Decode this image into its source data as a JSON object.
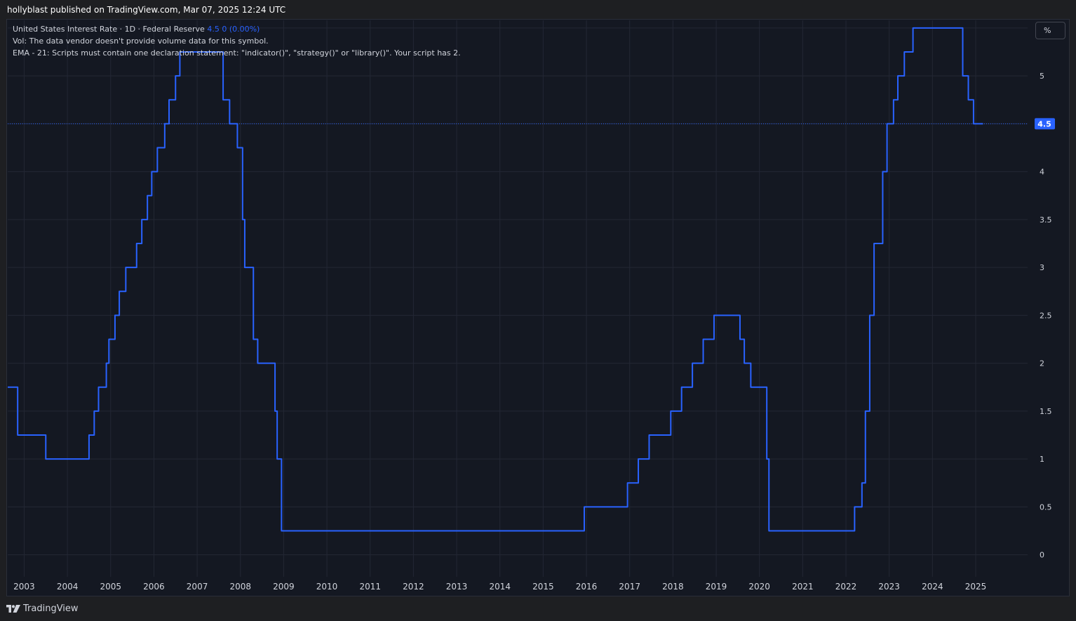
{
  "header": {
    "publisher_line": "hollyblast published on TradingView.com, Mar 07, 2025 12:24 UTC"
  },
  "legend": {
    "line1_prefix": "United States Interest Rate · 1D · Federal Reserve",
    "line1_values": "4.5  0 (0.00%)",
    "line2": "Vol: The data vendor doesn't provide volume data for this symbol.",
    "line3": "EMA - 21: Scripts must contain one declaration statement: \"indicator()\", \"strategy()\" or \"library()\". Your script has 2."
  },
  "scale_button": {
    "label": "%"
  },
  "footer": {
    "brand": "TradingView",
    "logo_icon": "tradingview-logo-icon"
  },
  "colors": {
    "line": "#2962ff",
    "background": "#141822",
    "grid": "#232734",
    "text": "#d1d4dc"
  },
  "chart_data": {
    "type": "line",
    "title": "United States Interest Rate",
    "xlabel": "",
    "ylabel": "",
    "ylim": [
      -0.23,
      5.58
    ],
    "xlim": [
      2002.62,
      2026.2
    ],
    "y_ticks": [
      "0",
      "0.5",
      "1",
      "1.5",
      "2",
      "2.5",
      "3",
      "3.5",
      "4",
      "4.5",
      "5",
      "5.5"
    ],
    "x_ticks": [
      "2003",
      "2004",
      "2005",
      "2006",
      "2007",
      "2008",
      "2009",
      "2010",
      "2011",
      "2012",
      "2013",
      "2014",
      "2015",
      "2016",
      "2017",
      "2018",
      "2019",
      "2020",
      "2021",
      "2022",
      "2023",
      "2024",
      "2025"
    ],
    "last_value_label": "4.5",
    "last_value": 4.5,
    "series": [
      {
        "name": "United States Interest Rate",
        "step": true,
        "points": [
          [
            2002.62,
            1.75
          ],
          [
            2002.85,
            1.25
          ],
          [
            2003.5,
            1.0
          ],
          [
            2004.5,
            1.25
          ],
          [
            2004.62,
            1.5
          ],
          [
            2004.72,
            1.75
          ],
          [
            2004.9,
            2.0
          ],
          [
            2004.96,
            2.25
          ],
          [
            2005.1,
            2.5
          ],
          [
            2005.2,
            2.75
          ],
          [
            2005.35,
            3.0
          ],
          [
            2005.6,
            3.25
          ],
          [
            2005.72,
            3.5
          ],
          [
            2005.85,
            3.75
          ],
          [
            2005.95,
            4.0
          ],
          [
            2006.08,
            4.25
          ],
          [
            2006.25,
            4.5
          ],
          [
            2006.35,
            4.75
          ],
          [
            2006.5,
            5.0
          ],
          [
            2006.6,
            5.25
          ],
          [
            2007.6,
            4.75
          ],
          [
            2007.75,
            4.5
          ],
          [
            2007.93,
            4.25
          ],
          [
            2008.05,
            3.5
          ],
          [
            2008.1,
            3.0
          ],
          [
            2008.3,
            2.25
          ],
          [
            2008.4,
            2.0
          ],
          [
            2008.8,
            1.5
          ],
          [
            2008.85,
            1.0
          ],
          [
            2008.95,
            0.25
          ],
          [
            2015.95,
            0.5
          ],
          [
            2016.95,
            0.75
          ],
          [
            2017.2,
            1.0
          ],
          [
            2017.45,
            1.25
          ],
          [
            2017.95,
            1.5
          ],
          [
            2018.2,
            1.75
          ],
          [
            2018.45,
            2.0
          ],
          [
            2018.7,
            2.25
          ],
          [
            2018.95,
            2.5
          ],
          [
            2019.55,
            2.25
          ],
          [
            2019.65,
            2.0
          ],
          [
            2019.8,
            1.75
          ],
          [
            2020.17,
            1.0
          ],
          [
            2020.22,
            0.25
          ],
          [
            2022.2,
            0.5
          ],
          [
            2022.37,
            0.75
          ],
          [
            2022.45,
            1.5
          ],
          [
            2022.55,
            2.5
          ],
          [
            2022.65,
            3.25
          ],
          [
            2022.85,
            4.0
          ],
          [
            2022.95,
            4.5
          ],
          [
            2023.1,
            4.75
          ],
          [
            2023.2,
            5.0
          ],
          [
            2023.35,
            5.25
          ],
          [
            2023.55,
            5.5
          ],
          [
            2024.7,
            5.0
          ],
          [
            2024.83,
            4.75
          ],
          [
            2024.95,
            4.5
          ],
          [
            2025.17,
            4.5
          ]
        ]
      }
    ]
  }
}
